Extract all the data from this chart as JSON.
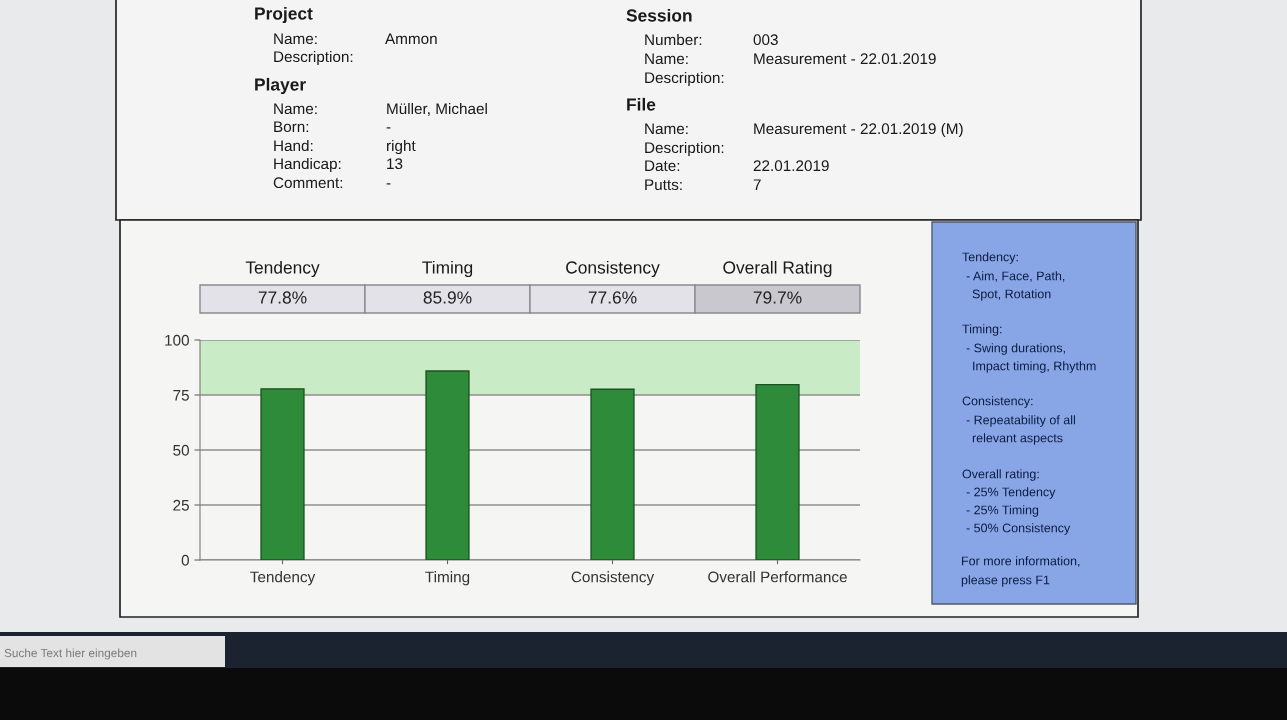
{
  "chart_data": {
    "type": "bar",
    "categories": [
      "Tendency",
      "Timing",
      "Consistency",
      "Overall Performance"
    ],
    "values": [
      77.8,
      85.9,
      77.6,
      79.7
    ],
    "value_labels": [
      "77.8%",
      "85.9%",
      "77.6%",
      "79.7%"
    ],
    "color": "#2e8b3a",
    "ylim": [
      0,
      100
    ],
    "yticks": [
      0,
      25,
      50,
      75,
      100
    ],
    "grid": "y",
    "bands": [
      {
        "axis": "y",
        "from": 75,
        "to": 100,
        "color": "#c9ebc5"
      }
    ],
    "annotations": [
      "Tendency",
      "Timing",
      "Consistency",
      "Overall Rating",
      "Project",
      "Name:",
      "Description:",
      "Ammon",
      "Player",
      "Name:",
      "Born:",
      "Hand:",
      "Handicap:",
      "Comment:",
      "Müller, Michael",
      "-",
      "right",
      "13",
      "-",
      "Session",
      "Number:",
      "Name:",
      "Description:",
      "003",
      "Measurement - 22.01.2019",
      "File",
      "Name:",
      "Description:",
      "Date:",
      "Putts:",
      "Measurement - 22.01.2019 (M)",
      "22.01.2019",
      "7",
      "Tendency:",
      "- Aim, Face, Path,",
      "Spot, Rotation",
      "Timing:",
      "- Swing durations,",
      "Impact timing, Rhythm",
      "Consistency:",
      "- Repeatability of all",
      "relevant aspects",
      "Overall rating:",
      "- 25% Tendency",
      "- 25% Timing",
      "- 50% Consistency",
      "For more information,",
      "please press F1",
      "Suche Text hier eingeben"
    ]
  }
}
